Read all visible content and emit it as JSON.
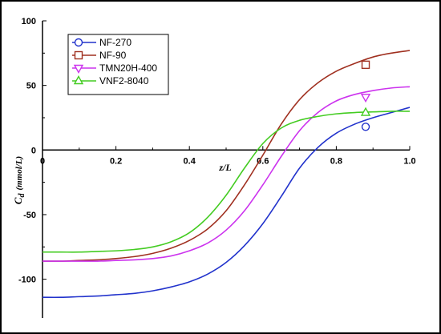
{
  "chart_data": {
    "type": "line",
    "xlabel": "z/L",
    "ylabel_main": "C",
    "ylabel_sub": "d",
    "ylabel_unit": "(mmol/L)",
    "xlim": [
      0,
      1.0
    ],
    "ylim": [
      -130,
      100
    ],
    "x_ticks": [
      0,
      0.2,
      0.4,
      0.6,
      0.8,
      1.0
    ],
    "x_tick_labels": [
      "0",
      "0.2",
      "0.4",
      "0.6",
      "0.8",
      "1.0"
    ],
    "y_ticks": [
      -100,
      -50,
      0,
      50,
      100
    ],
    "y_tick_labels": [
      "-100",
      "-50",
      "0",
      "50",
      "100"
    ],
    "grid": false,
    "legend_position": "top-left",
    "x": [
      0,
      0.05,
      0.1,
      0.15,
      0.2,
      0.25,
      0.3,
      0.35,
      0.4,
      0.45,
      0.5,
      0.55,
      0.6,
      0.65,
      0.7,
      0.75,
      0.8,
      0.85,
      0.9,
      0.95,
      1.0
    ],
    "series": [
      {
        "name": "NF-270",
        "color": "#2233cc",
        "marker": "circle",
        "marker_x": 0.88,
        "marker_y": 18,
        "values": [
          -114,
          -114,
          -113.5,
          -113,
          -112,
          -111,
          -109,
          -106,
          -102,
          -96,
          -87,
          -74,
          -57,
          -36,
          -14,
          2,
          13,
          20,
          25,
          29,
          33
        ]
      },
      {
        "name": "NF-90",
        "color": "#a03020",
        "marker": "square",
        "marker_x": 0.88,
        "marker_y": 66,
        "values": [
          -86,
          -86,
          -85.5,
          -85,
          -84,
          -82.5,
          -80,
          -76,
          -70,
          -61,
          -47,
          -27,
          -4,
          20,
          39,
          52,
          61,
          67,
          72,
          75,
          77
        ]
      },
      {
        "name": "TMN20H-400",
        "color": "#cc33ee",
        "marker": "triangle-down",
        "marker_x": 0.88,
        "marker_y": 41,
        "values": [
          -86,
          -86,
          -86,
          -86,
          -85.5,
          -85,
          -84,
          -82,
          -78,
          -72,
          -62,
          -47,
          -27,
          -5,
          15,
          29,
          38,
          43,
          46,
          48,
          49
        ]
      },
      {
        "name": "VNF2-8040",
        "color": "#44cc22",
        "marker": "triangle-up",
        "marker_x": 0.88,
        "marker_y": 29,
        "values": [
          -79,
          -79,
          -79,
          -78.5,
          -78,
          -77,
          -75,
          -71,
          -64,
          -52,
          -35,
          -14,
          5,
          17,
          23,
          26,
          28,
          29,
          29.5,
          30,
          30
        ]
      }
    ]
  }
}
